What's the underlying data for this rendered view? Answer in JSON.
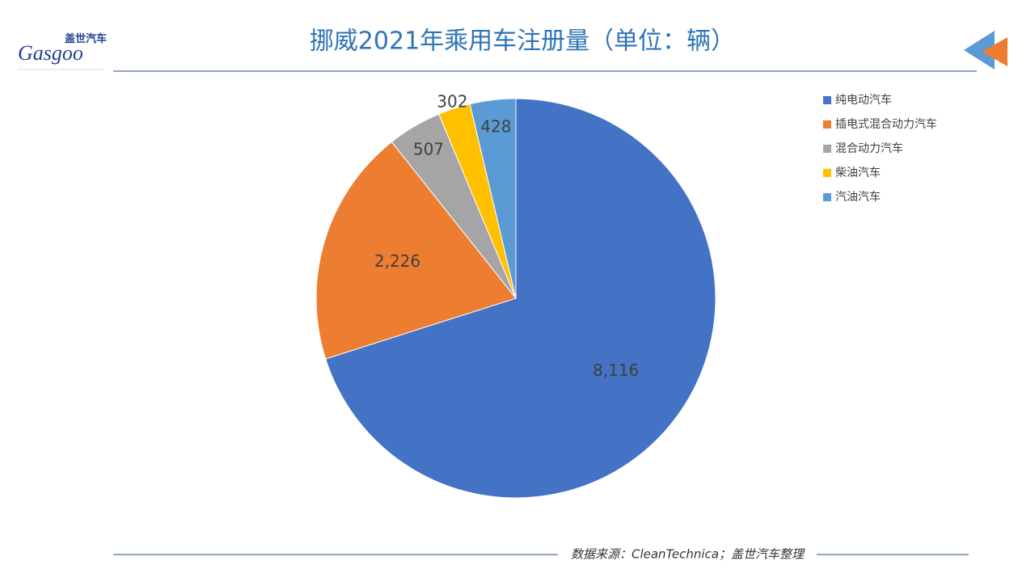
{
  "logo": {
    "name": "盖世汽车",
    "brand": "Gasgoo"
  },
  "source": "数据来源：CleanTechnica；盖世汽车整理",
  "chart_data": {
    "type": "pie",
    "title": "挪威2021年乘用车注册量（单位：辆）",
    "categories": [
      "纯电动汽车",
      "插电式混合动力汽车",
      "混合动力汽车",
      "柴油汽车",
      "汽油汽车"
    ],
    "values": [
      8116,
      2226,
      507,
      302,
      428
    ],
    "value_labels": [
      "8,116",
      "2,226",
      "507",
      "302",
      "428"
    ],
    "colors": [
      "#4472c4",
      "#ed7d31",
      "#a5a5a5",
      "#ffc000",
      "#5b9bd5"
    ],
    "legend": "right"
  }
}
